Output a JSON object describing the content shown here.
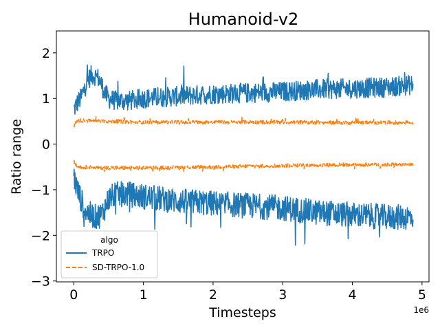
{
  "chart_data": {
    "type": "line",
    "title": "Humanoid-v2",
    "xlabel": "Timesteps",
    "ylabel": "Ratio range",
    "x_offset_label": "1e6",
    "xlim": [
      -0.25,
      5.1
    ],
    "ylim": [
      -3.02,
      2.48
    ],
    "x_ticks": [
      0,
      1,
      2,
      3,
      4,
      5
    ],
    "x_tick_labels": [
      "0",
      "1",
      "2",
      "3",
      "4",
      "5"
    ],
    "y_ticks": [
      -3,
      -2,
      -1,
      0,
      1,
      2
    ],
    "y_tick_labels": [
      "−3",
      "−2",
      "−1",
      "0",
      "1",
      "2"
    ],
    "grid": false,
    "legend": {
      "title": "algo",
      "placement": "lower-left",
      "entries": [
        "TRPO",
        "SD-TRPO-1.0"
      ]
    },
    "series": [
      {
        "name": "TRPO",
        "color": "#1f77b4",
        "dash": "solid",
        "bands": [
          {
            "part": "upper",
            "x": [
              0.0,
              0.05,
              0.1,
              0.15,
              0.2,
              0.25,
              0.3,
              0.35,
              0.4,
              0.45,
              0.5,
              0.6,
              0.8,
              1.0,
              1.5,
              2.0,
              2.5,
              3.0,
              3.5,
              4.0,
              4.5,
              4.87
            ],
            "y": [
              0.75,
              0.9,
              1.0,
              1.2,
              1.4,
              1.5,
              1.5,
              1.45,
              1.3,
              1.1,
              1.0,
              0.95,
              0.95,
              1.0,
              1.05,
              1.1,
              1.12,
              1.15,
              1.2,
              1.22,
              1.25,
              1.3
            ],
            "noise": 0.22
          },
          {
            "part": "lower",
            "x": [
              0.0,
              0.05,
              0.1,
              0.15,
              0.2,
              0.3,
              0.4,
              0.5,
              0.6,
              0.8,
              1.0,
              1.5,
              2.0,
              2.5,
              3.0,
              3.5,
              4.0,
              4.5,
              4.87
            ],
            "y": [
              -0.7,
              -1.0,
              -1.2,
              -1.4,
              -1.5,
              -1.6,
              -1.55,
              -1.2,
              -1.1,
              -1.1,
              -1.15,
              -1.25,
              -1.3,
              -1.35,
              -1.4,
              -1.5,
              -1.55,
              -1.6,
              -1.6
            ],
            "noise": 0.28
          }
        ]
      },
      {
        "name": "SD-TRPO-1.0",
        "color": "#ff7f0e",
        "dash": "dashed",
        "bands": [
          {
            "part": "upper",
            "x": [
              0.0,
              0.05,
              0.5,
              1.0,
              2.0,
              3.0,
              4.0,
              4.87
            ],
            "y": [
              0.4,
              0.52,
              0.5,
              0.48,
              0.48,
              0.48,
              0.47,
              0.47
            ],
            "noise": 0.04
          },
          {
            "part": "lower",
            "x": [
              0.0,
              0.05,
              0.5,
              1.0,
              2.0,
              3.0,
              4.0,
              4.87
            ],
            "y": [
              -0.35,
              -0.5,
              -0.52,
              -0.52,
              -0.5,
              -0.47,
              -0.45,
              -0.45
            ],
            "noise": 0.04
          }
        ]
      }
    ]
  }
}
